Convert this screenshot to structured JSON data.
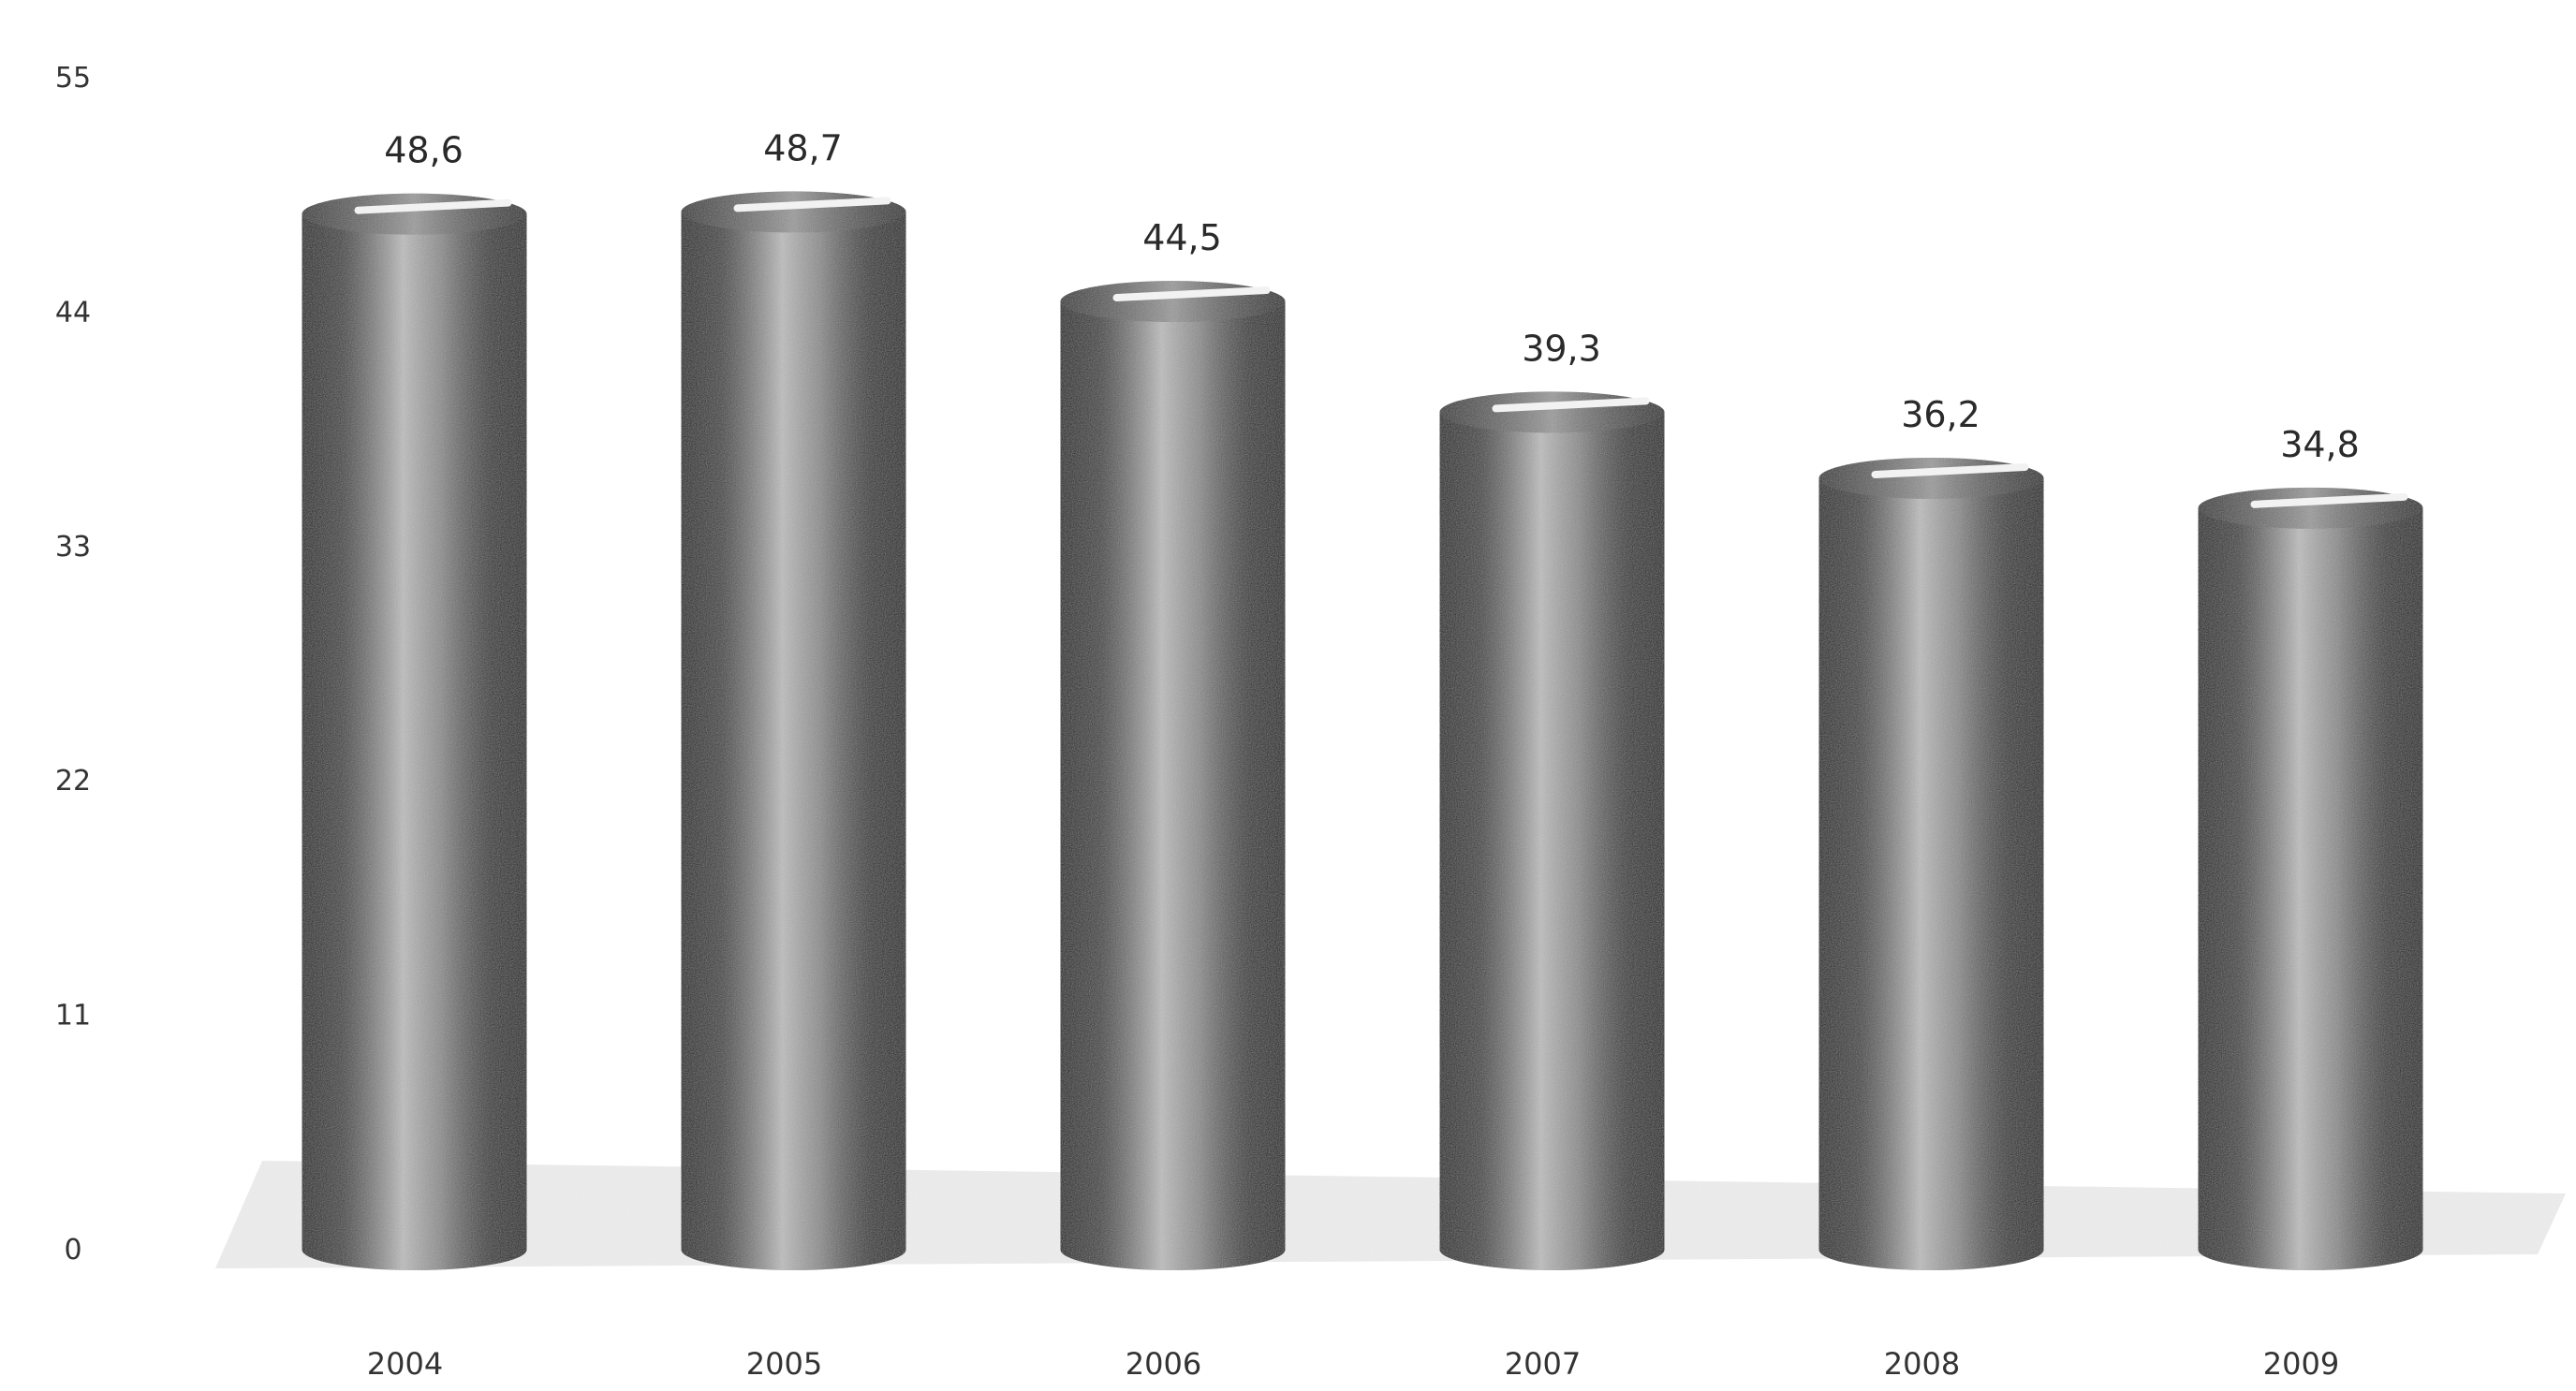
{
  "chart_data": {
    "type": "bar",
    "style": "3d-cylinder",
    "categories": [
      "2004",
      "2005",
      "2006",
      "2007",
      "2008",
      "2009"
    ],
    "values": [
      48.6,
      48.7,
      44.5,
      39.3,
      36.2,
      34.8
    ],
    "value_labels": [
      "48,6",
      "48,7",
      "44,5",
      "39,3",
      "36,2",
      "34,8"
    ],
    "y_ticks": [
      "0",
      "11",
      "22",
      "33",
      "44",
      "55"
    ],
    "ylim": [
      0,
      55
    ],
    "title": "",
    "xlabel": "",
    "ylabel": "",
    "grid": false,
    "legend": "none",
    "colors": {
      "bar_dark": "#0d0d0d",
      "bar_light": "#bdbdbd",
      "floor": "#c8c8c8"
    }
  }
}
